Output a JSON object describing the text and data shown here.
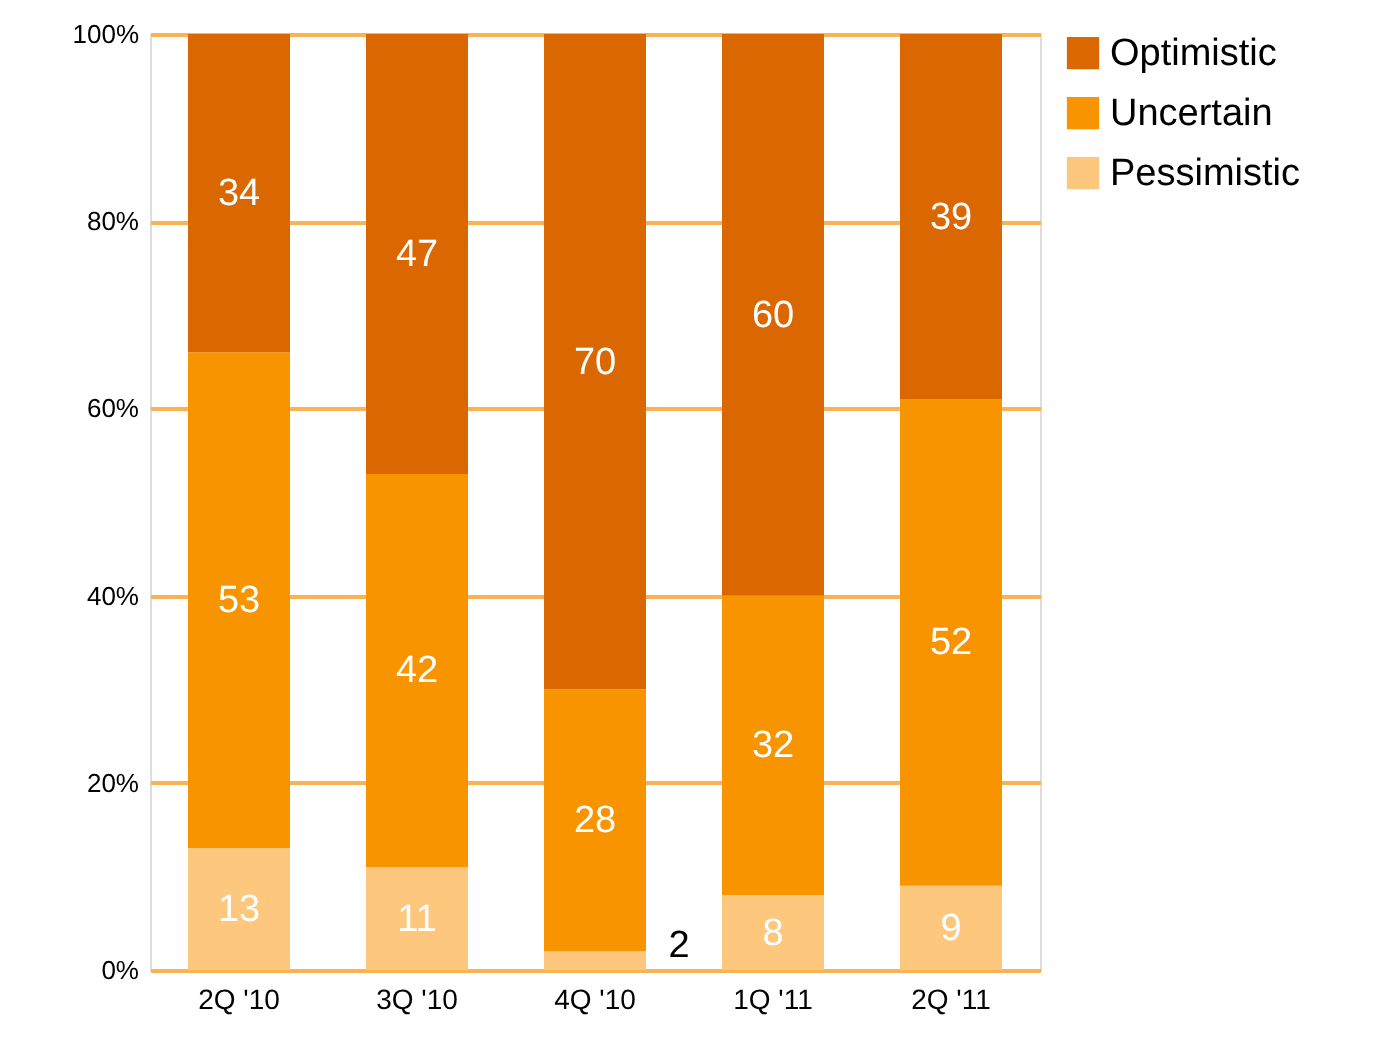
{
  "chart_data": {
    "type": "bar",
    "stacked": true,
    "data_labels": true,
    "categories": [
      "2Q '10",
      "3Q '10",
      "4Q '10",
      "1Q '11",
      "2Q '11"
    ],
    "series": [
      {
        "name": "Pessimistic",
        "color": "#fdc77e",
        "values": [
          13,
          11,
          2,
          8,
          9
        ]
      },
      {
        "name": "Uncertain",
        "color": "#f79400",
        "values": [
          53,
          42,
          28,
          32,
          52
        ]
      },
      {
        "name": "Optimistic",
        "color": "#db6700",
        "values": [
          34,
          47,
          70,
          60,
          39
        ]
      }
    ],
    "ylim": [
      0,
      100
    ],
    "yticks": [
      {
        "value": 0,
        "label": "0%"
      },
      {
        "value": 20,
        "label": "20%"
      },
      {
        "value": 40,
        "label": "40%"
      },
      {
        "value": 60,
        "label": "60%"
      },
      {
        "value": 80,
        "label": "80%"
      },
      {
        "value": 100,
        "label": "100%"
      }
    ],
    "grid": "y",
    "legend": "top right"
  }
}
